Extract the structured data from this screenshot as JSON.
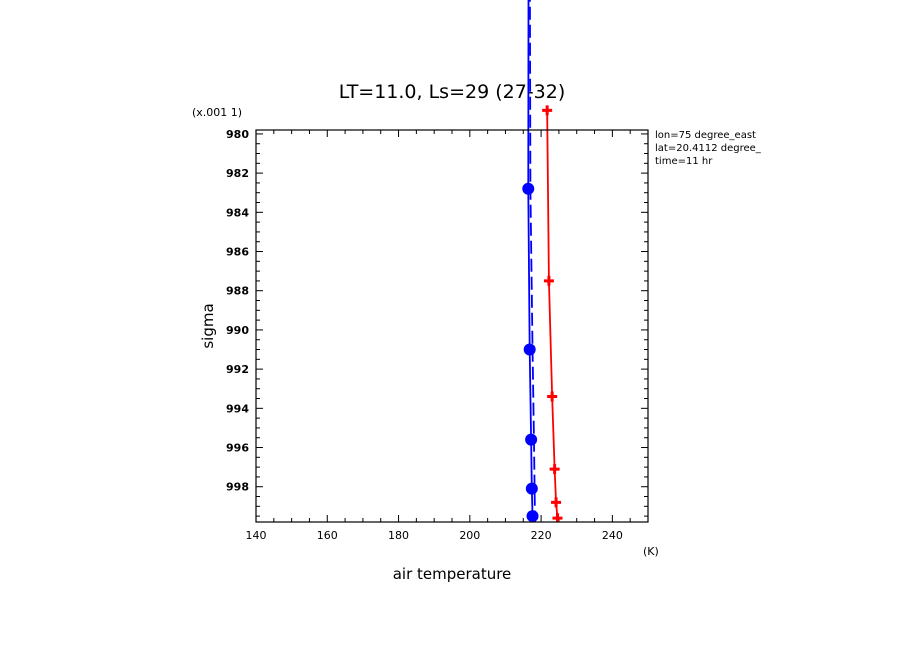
{
  "chart_data": {
    "type": "line",
    "title": "LT=11.0, Ls=29 (27-32)",
    "xlabel": "air temperature",
    "ylabel": "sigma",
    "x_unit": "(K)",
    "y_scale_note": "(x.001 1)",
    "xlim": [
      140,
      250
    ],
    "ylim": [
      979.8,
      999.8
    ],
    "y_inverted": true,
    "x_ticks": [
      140,
      160,
      180,
      200,
      220,
      240
    ],
    "y_ticks": [
      980,
      982,
      984,
      986,
      988,
      990,
      992,
      994,
      996,
      998
    ],
    "annotations": [
      "lon=75 degree_east",
      "lat=20.4112 degree_",
      "time=11 hr"
    ],
    "series": [
      {
        "color": "#ff0000",
        "marker": "plus",
        "dash": "solid",
        "x": [
          221.7,
          222.2,
          223.1,
          223.8,
          224.2,
          224.6
        ],
        "y": [
          978.8,
          987.5,
          993.4,
          997.1,
          998.8,
          999.6
        ]
      },
      {
        "color": "#0000ff",
        "marker": "circle",
        "dash": "solid",
        "x": [
          216.5,
          216.4,
          216.8,
          217.2,
          217.4,
          217.6
        ],
        "y": [
          968.0,
          982.8,
          991.0,
          995.6,
          998.1,
          999.5
        ]
      },
      {
        "color": "#0000ff",
        "marker": "none",
        "dash": "dashed",
        "x": [
          216.8,
          217.0,
          217.6,
          218.0,
          218.3
        ],
        "y": [
          968.0,
          982.8,
          991.0,
          995.6,
          999.8
        ]
      }
    ]
  }
}
